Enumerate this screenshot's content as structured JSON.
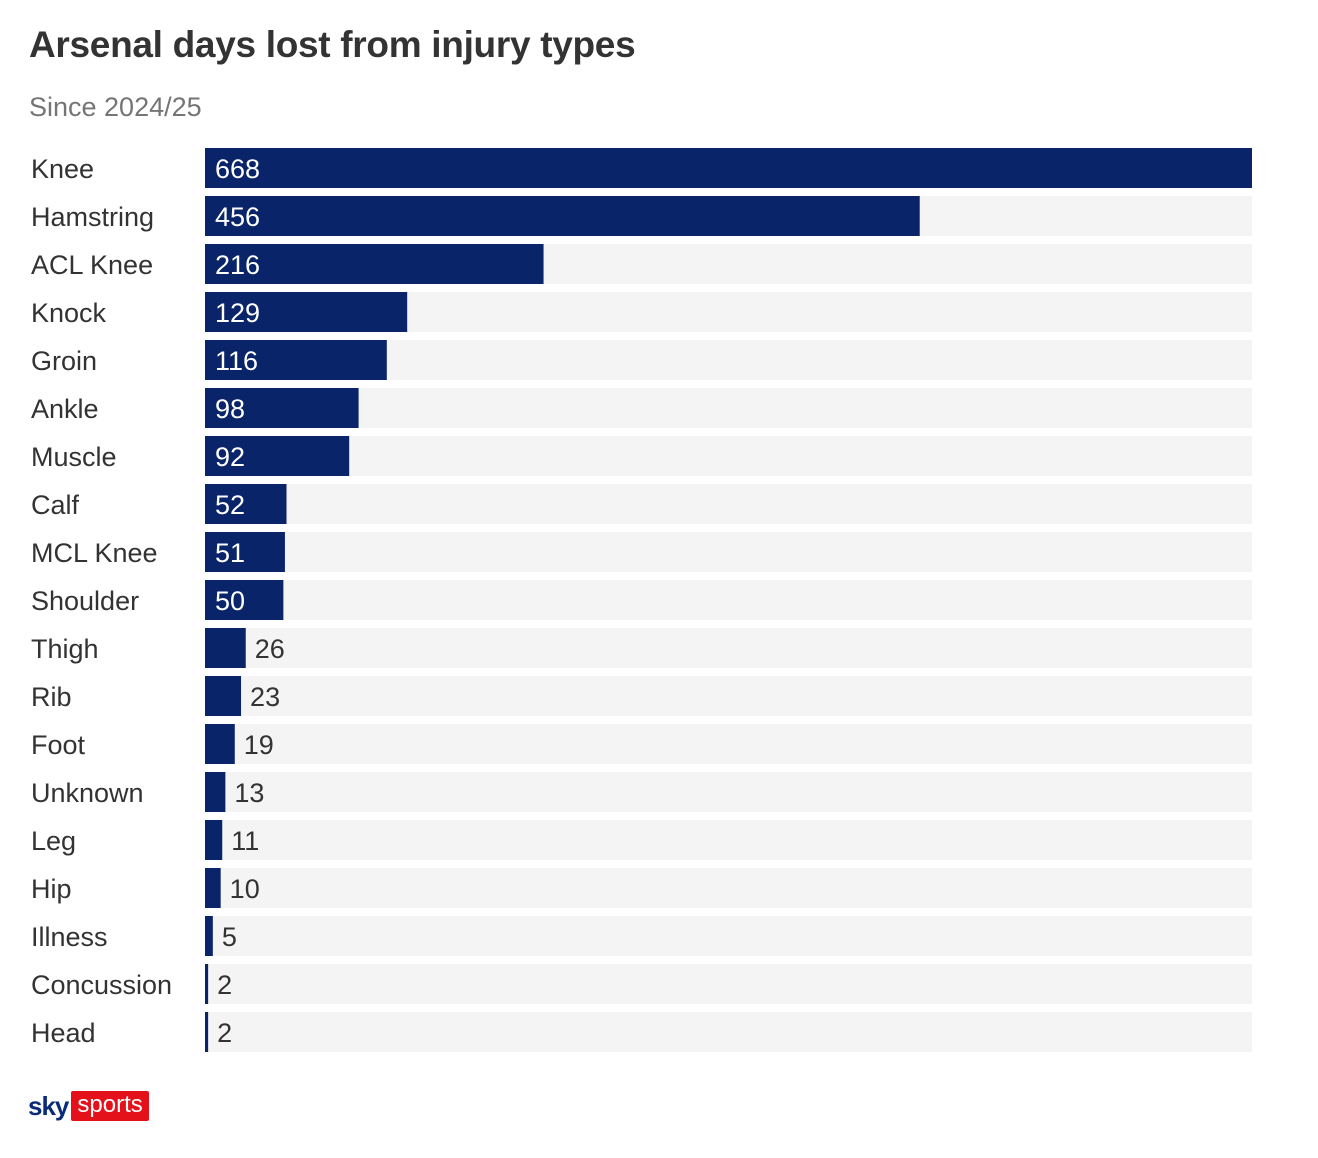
{
  "title": "Arsenal days lost from injury types",
  "subtitle": "Since 2024/25",
  "colors": {
    "bar": "#0a2469",
    "track": "#f4f4f4",
    "label_inside": "#ffffff",
    "label_outside": "#333333",
    "brand_red": "#e4111b",
    "brand_blue": "#0a2a7a"
  },
  "logo": {
    "sky": "sky",
    "sports": "sports"
  },
  "chart_data": {
    "type": "bar",
    "orientation": "horizontal",
    "categories": [
      "Knee",
      "Hamstring",
      "ACL Knee",
      "Knock",
      "Groin",
      "Ankle",
      "Muscle",
      "Calf",
      "MCL Knee",
      "Shoulder",
      "Thigh",
      "Rib",
      "Foot",
      "Unknown",
      "Leg",
      "Hip",
      "Illness",
      "Concussion",
      "Head"
    ],
    "values": [
      668,
      456,
      216,
      129,
      116,
      98,
      92,
      52,
      51,
      50,
      26,
      23,
      19,
      13,
      11,
      10,
      5,
      2,
      2
    ],
    "title": "Arsenal days lost from injury types",
    "subtitle": "Since 2024/25",
    "xlabel": "",
    "ylabel": "",
    "xlim": [
      0,
      668
    ],
    "grid": false,
    "legend": "none"
  }
}
